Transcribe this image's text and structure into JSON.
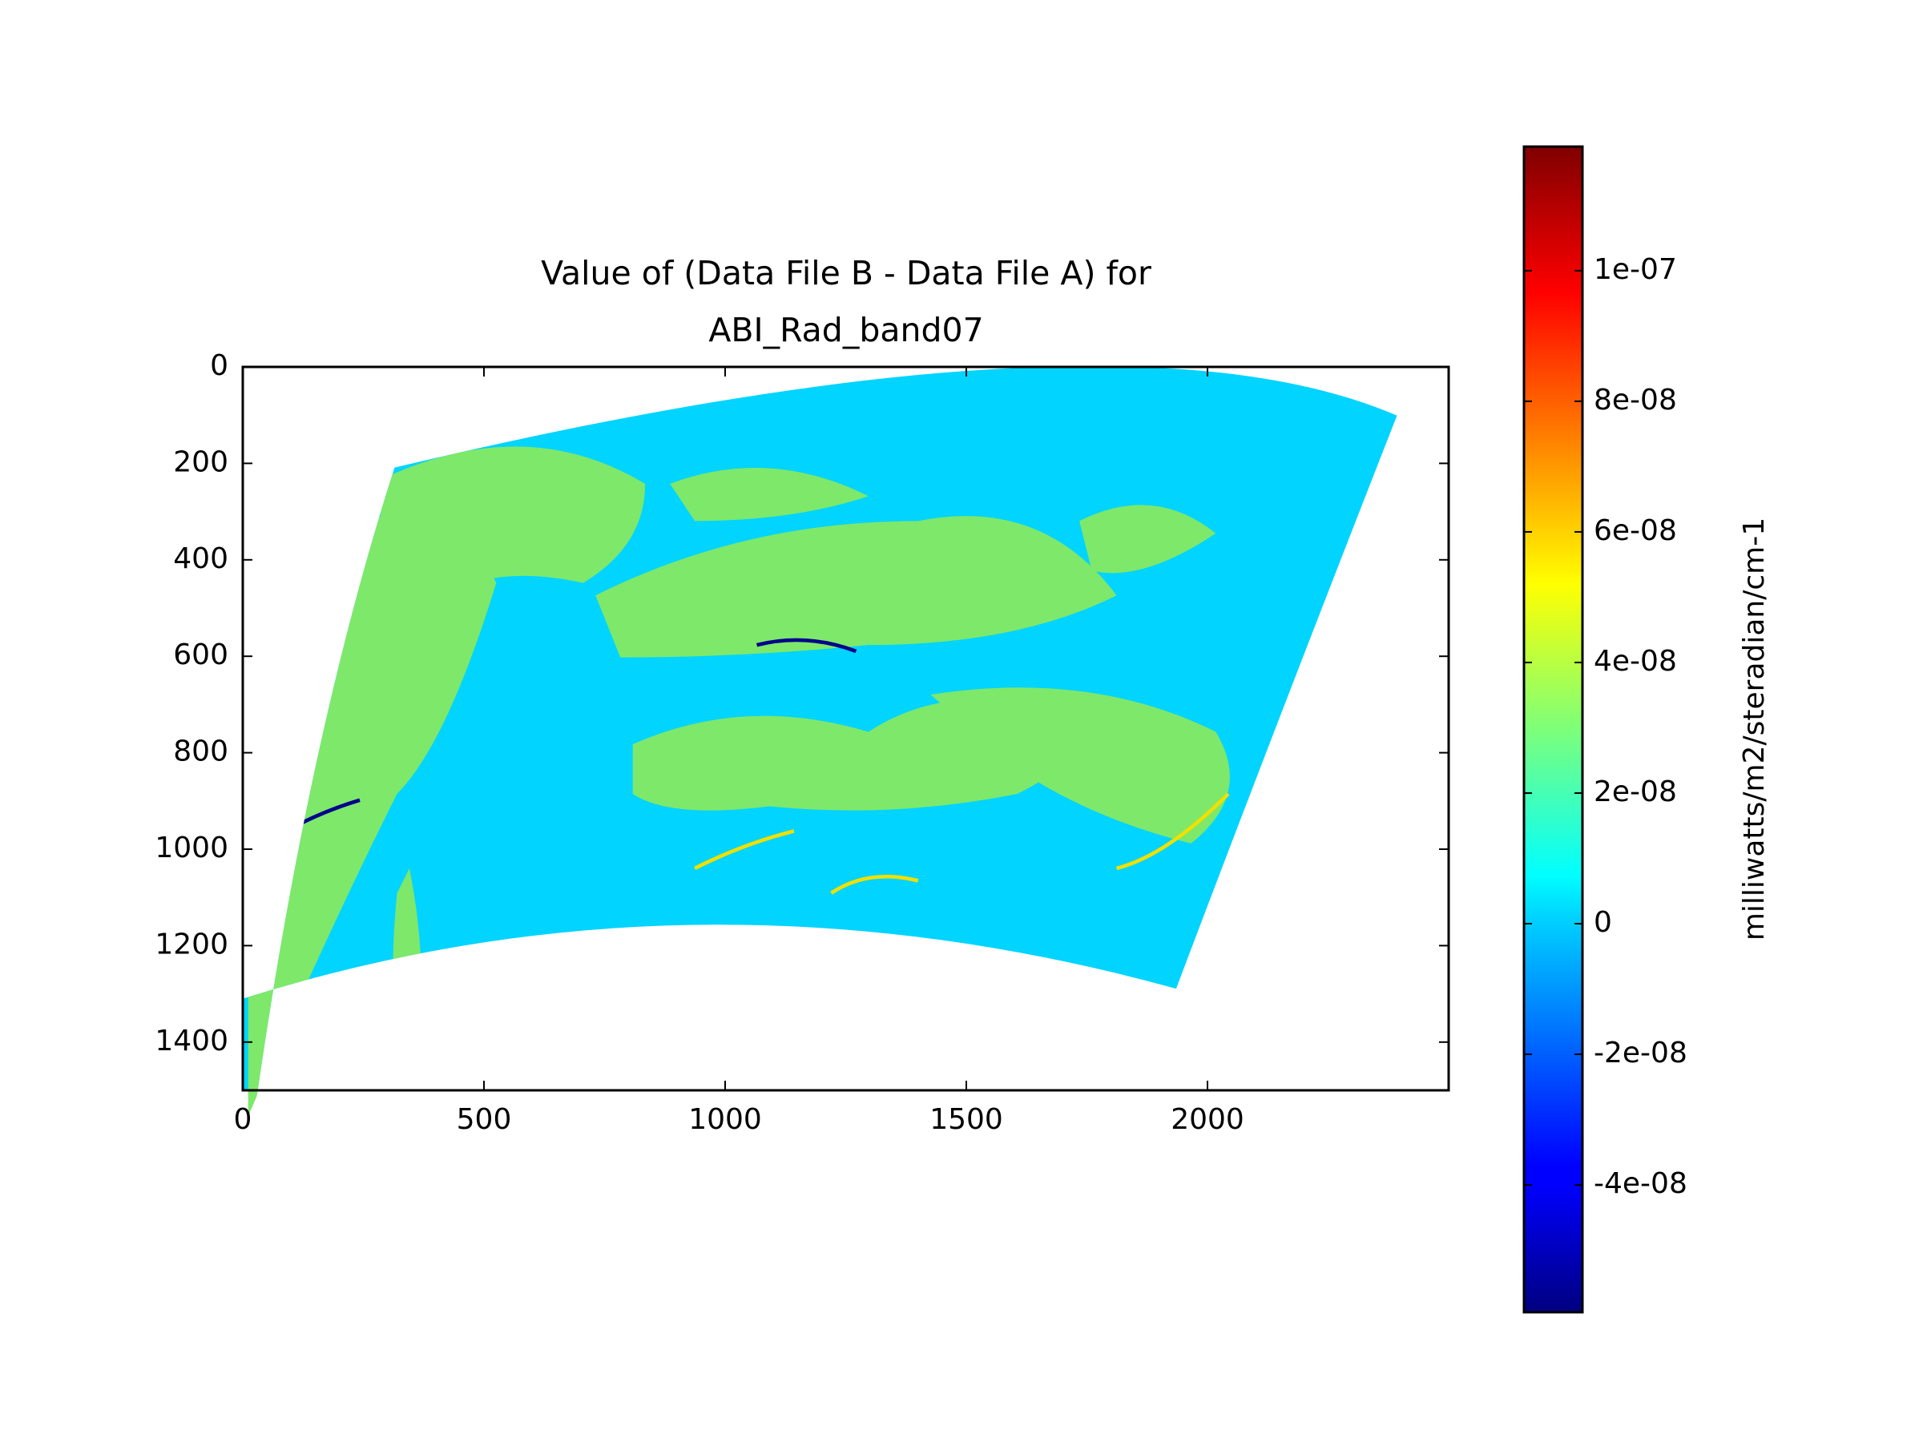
{
  "chart_data": {
    "type": "image",
    "title": [
      "Value of (Data File B - Data File A) for",
      "ABI_Rad_band07"
    ],
    "xlim": [
      0,
      2500
    ],
    "ylim": [
      1500,
      0
    ],
    "xticks": [
      0,
      500,
      1000,
      1500,
      2000
    ],
    "yticks": [
      0,
      200,
      400,
      600,
      800,
      1000,
      1200,
      1400
    ],
    "colormap": "jet",
    "clim": [
      -5.95e-08,
      1.19e-07
    ],
    "cticks": [
      {
        "value": -4e-08,
        "label": "-4e-08"
      },
      {
        "value": -2e-08,
        "label": "-2e-08"
      },
      0,
      {
        "value": 2e-08,
        "label": "2e-08"
      },
      {
        "value": 4e-08,
        "label": "4e-08"
      },
      {
        "value": 6e-08,
        "label": "6e-08"
      },
      {
        "value": 8e-08,
        "label": "8e-08"
      },
      {
        "value": 1e-07,
        "label": "1e-07"
      }
    ],
    "colorbar_label": "milliwatts/m2/steradian/cm-1"
  }
}
